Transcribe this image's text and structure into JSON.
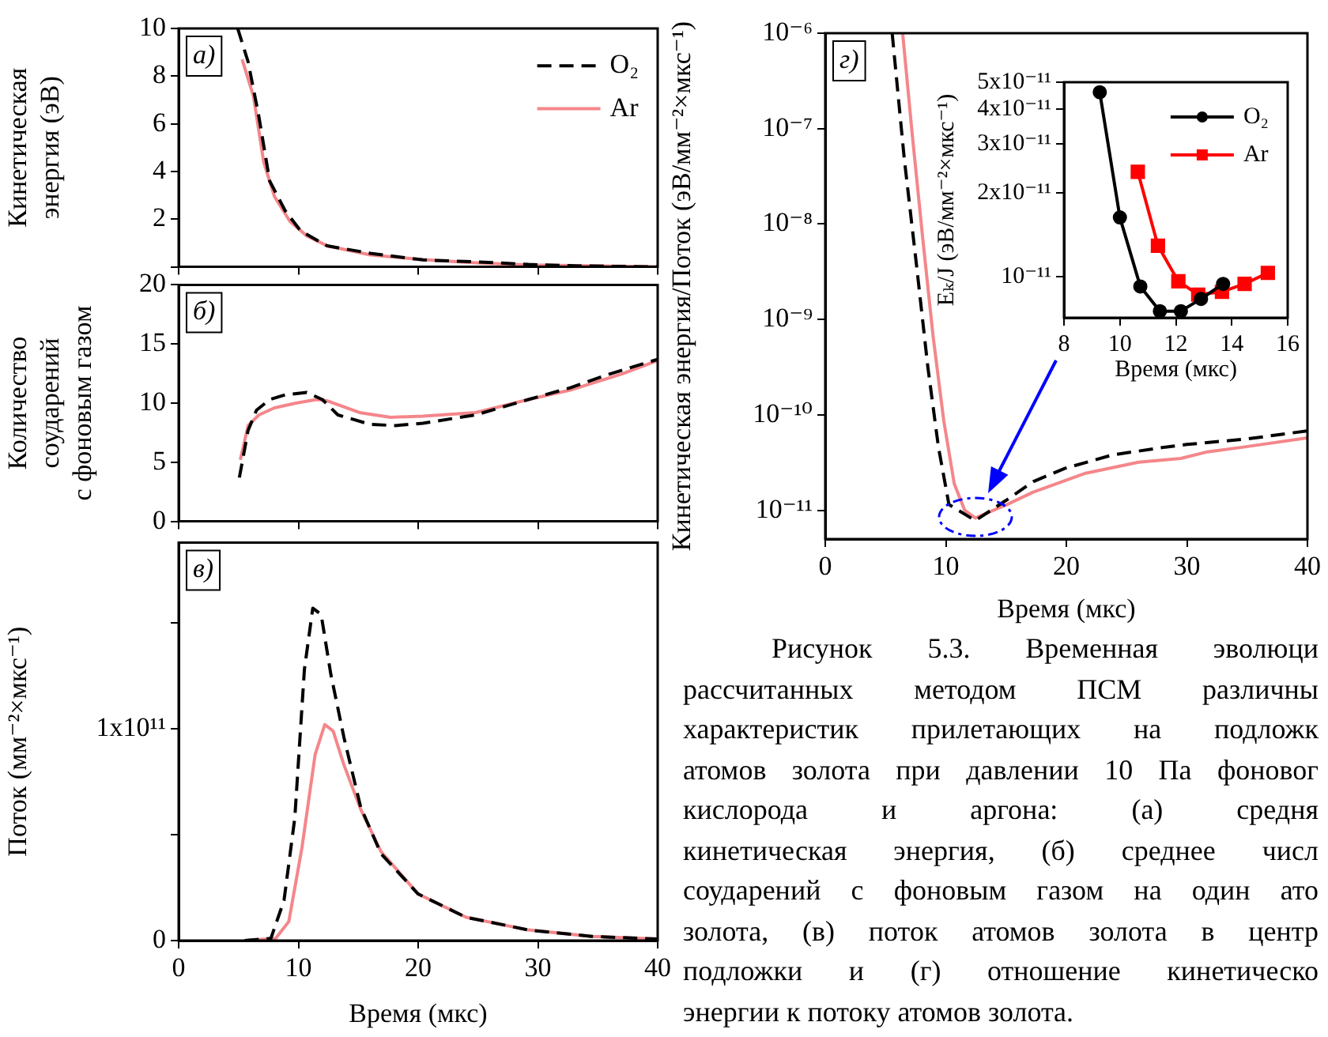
{
  "chart_data": [
    {
      "type": "line",
      "ylabel": "Кинетическая\nэнергия (эВ)",
      "xlim": [
        0,
        40
      ],
      "xticks": [
        0,
        10,
        20,
        30,
        40
      ],
      "ylim": [
        0,
        10
      ],
      "yticks": [
        {
          "value": 0,
          "label": null
        },
        2,
        4,
        6,
        8,
        10
      ],
      "tick_labels": "y",
      "legend": "top right",
      "annotations": [
        "а)"
      ],
      "series": [
        {
          "name": "O₂",
          "color": "#000000",
          "line_style": "dashed",
          "x": [
            4.93,
            5.8,
            6.7,
            7.6,
            8.9,
            10.2,
            12.4,
            16,
            20.4,
            24.8,
            29.2,
            33.6,
            40
          ],
          "values": [
            10,
            8.6,
            6.3,
            3.6,
            2.35,
            1.5,
            0.88,
            0.57,
            0.29,
            0.21,
            0.1,
            0.04,
            0
          ]
        },
        {
          "name": "Ar",
          "color": "#f4868a",
          "line_style": "solid",
          "x": [
            5.3,
            6.25,
            7.1,
            8,
            9.3,
            10.7,
            12.4,
            16,
            20.4,
            24.8,
            29.2,
            40
          ],
          "values": [
            8.7,
            7.15,
            4.4,
            2.95,
            1.9,
            1.3,
            0.88,
            0.5,
            0.3,
            0.17,
            0.08,
            0
          ]
        }
      ]
    },
    {
      "type": "line",
      "ylabel": "Количество\nсоударений\nс фоновым газом",
      "xlim": [
        0,
        40
      ],
      "xticks": [
        0,
        10,
        20,
        30,
        40
      ],
      "ylim": [
        0,
        20
      ],
      "yticks": [
        0,
        5,
        10,
        15,
        20
      ],
      "tick_labels": "y",
      "annotations": [
        "б)"
      ],
      "series": [
        {
          "color": "#000000",
          "line_style": "dashed",
          "x": [
            5.07,
            5.8,
            6.5,
            7.6,
            8.9,
            10.7,
            12,
            13.3,
            16,
            18.1,
            20.4,
            24.8,
            29.2,
            32.7,
            35.8,
            40
          ],
          "values": [
            3.7,
            7.7,
            9.4,
            10.3,
            10.7,
            10.9,
            10.3,
            9.0,
            8.2,
            8.1,
            8.3,
            9.0,
            10.3,
            11.3,
            12.4,
            13.7
          ]
        },
        {
          "color": "#f4868a",
          "line_style": "solid",
          "x": [
            5.15,
            5.8,
            6.7,
            8,
            9.8,
            11.5,
            12.4,
            15.1,
            17.7,
            20.4,
            24.8,
            29.2,
            32.7,
            37.1,
            40
          ],
          "values": [
            5.2,
            8.1,
            9.0,
            9.6,
            10.0,
            10.3,
            10.2,
            9.2,
            8.8,
            8.9,
            9.2,
            10.3,
            11.1,
            12.5,
            13.6
          ]
        }
      ]
    },
    {
      "type": "line",
      "xlabel": "Время (мкс)",
      "ylabel": "Поток (мм⁻²×мкс⁻¹)",
      "xlim": [
        0,
        40
      ],
      "xticks": [
        0,
        10,
        20,
        30,
        40
      ],
      "ylim": [
        0,
        188000000000.0
      ],
      "yticks": [
        0,
        {
          "value": 50000000000.0,
          "label": null
        },
        {
          "value": 100000000000.0,
          "label": "1x10¹¹"
        },
        {
          "value": 150000000000.0,
          "label": null
        }
      ],
      "annotations": [
        "в)"
      ],
      "series": [
        {
          "color": "#000000",
          "line_style": "dashed",
          "x": [
            5.5,
            7.7,
            8.8,
            9.7,
            10.5,
            11.2,
            11.9,
            12.7,
            13.8,
            15.2,
            16.9,
            20,
            24,
            29.2,
            34.5,
            40
          ],
          "values": [
            0,
            1000000000.0,
            19000000000.0,
            58000000000.0,
            128000000000.0,
            157000000000.0,
            154000000000.0,
            126000000000.0,
            96000000000.0,
            63000000000.0,
            41000000000.0,
            22000000000.0,
            11000000000.0,
            5000000000.0,
            2000000000.0,
            700000000.0
          ]
        },
        {
          "color": "#f4868a",
          "line_style": "solid",
          "x": [
            5.5,
            8.1,
            9.2,
            10.3,
            11.4,
            12.2,
            12.9,
            13.8,
            15.2,
            16.9,
            20,
            24,
            29.2,
            34.5,
            40
          ],
          "values": [
            0,
            1000000000.0,
            9000000000.0,
            44000000000.0,
            88000000000.0,
            102000000000.0,
            99000000000.0,
            83000000000.0,
            62000000000.0,
            42000000000.0,
            22000000000.0,
            11000000000.0,
            5000000000.0,
            2000000000.0,
            700000000.0
          ]
        }
      ]
    },
    {
      "type": "line",
      "xlabel": "Время (мкс)",
      "ylabel": "Кинетическая энергия/Поток (эВ/мм⁻²×мкс⁻¹)",
      "log": true,
      "xlim": [
        0,
        40
      ],
      "xticks": [
        0,
        10,
        20,
        30,
        40
      ],
      "ylim": [
        5e-12,
        1e-06
      ],
      "yticks": [
        {
          "value": 1e-11,
          "label": "10⁻¹¹"
        },
        {
          "value": 1e-10,
          "label": "10⁻¹⁰"
        },
        {
          "value": 1e-09,
          "label": "10⁻⁹"
        },
        {
          "value": 1e-08,
          "label": "10⁻⁸"
        },
        {
          "value": 1e-07,
          "label": "10⁻⁷"
        },
        {
          "value": 1e-06,
          "label": "10⁻⁶"
        }
      ],
      "annotations": [
        "г)",
        "Рисунок 5.3. Временная эволюци\nрассчитанных методом ПСМ различны\nхарактеристик прилетающих на подложк\nатомов золота при давлении 10 Па фоновог\nкислорода и аргона: (а) средня\nкинетическая энергия, (б) среднее числ\nсоударений с фоновым газом на один ато\nзолота, (в) поток атомов золота в центр\nподложки и (г) отношение кинетическо\nэнергии к потоку атомов золота."
      ],
      "series": [
        {
          "color": "#000000",
          "line_style": "dashed",
          "x": [
            5.55,
            6.55,
            7.55,
            8.52,
            9.39,
            10.26,
            12.45,
            15.07,
            17.25,
            19.87,
            23.8,
            28.2,
            30,
            35,
            40
          ],
          "values": [
            1e-06,
            4.9e-08,
            3.9e-09,
            3.1e-10,
            4.6e-11,
            1.15e-11,
            7.8e-12,
            1.29e-11,
            2e-11,
            2.75e-11,
            3.8e-11,
            4.6e-11,
            4.9e-11,
            5.6e-11,
            6.8e-11
          ]
        },
        {
          "color": "#f4868a",
          "line_style": "solid",
          "x": [
            6.42,
            7.2,
            8.08,
            8.95,
            9.83,
            10.7,
            11.57,
            12.45,
            15.07,
            17.25,
            21.6,
            26,
            29.5,
            31.7,
            34.7,
            40
          ],
          "values": [
            1e-06,
            9.1e-08,
            7.2e-09,
            6.6e-10,
            8.7e-11,
            1.9e-11,
            1e-11,
            8.3e-12,
            1.15e-11,
            1.55e-11,
            2.45e-11,
            3.2e-11,
            3.5e-11,
            4.1e-11,
            4.6e-11,
            5.75e-11
          ]
        }
      ]
    },
    {
      "type": "line",
      "xlabel": "Время (мкс)",
      "ylabel": "Eₖ/J (эВ/мм⁻²×мкс⁻¹)",
      "log": true,
      "xlim": [
        8,
        16
      ],
      "xticks": [
        8,
        10,
        12,
        14,
        16
      ],
      "ylim": [
        7.1e-12,
        5e-11
      ],
      "yticks": [
        {
          "value": 1e-11,
          "label": "10⁻¹¹"
        },
        {
          "value": 2e-11,
          "label": "2x10⁻¹¹"
        },
        {
          "value": 3e-11,
          "label": "3x10⁻¹¹"
        },
        {
          "value": 4e-11,
          "label": "4x10⁻¹¹"
        },
        {
          "value": 5e-11,
          "label": "5x10⁻¹¹"
        }
      ],
      "legend": "top right",
      "series": [
        {
          "name": "O₂",
          "color": "#000000",
          "line_style": "solid",
          "marker": "circle",
          "x": [
            9.28,
            10.0,
            10.73,
            11.43,
            12.18,
            12.9,
            13.69
          ],
          "values": [
            4.6e-11,
            1.63e-11,
            9.2e-12,
            7.5e-12,
            7.5e-12,
            8.3e-12,
            9.4e-12
          ]
        },
        {
          "name": "Ar",
          "color": "#ff0000",
          "line_style": "solid",
          "marker": "square",
          "x": [
            10.64,
            11.36,
            12.09,
            12.8,
            13.65,
            14.46,
            15.29
          ],
          "values": [
            2.38e-11,
            1.29e-11,
            9.6e-12,
            8.6e-12,
            8.8e-12,
            9.4e-12,
            1.03e-11
          ]
        }
      ]
    }
  ]
}
